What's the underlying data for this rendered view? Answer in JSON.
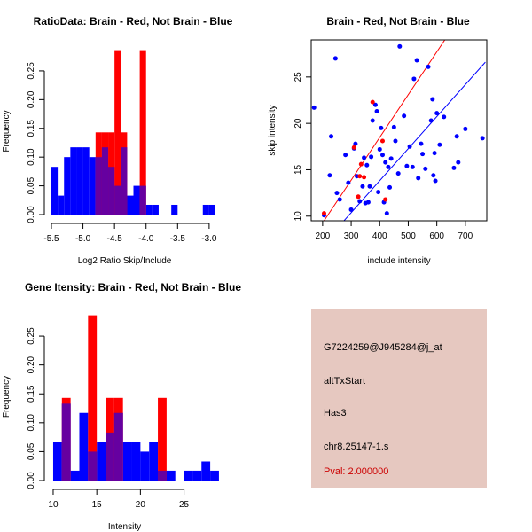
{
  "colors": {
    "red": "#ff0000",
    "blue": "#0000ff",
    "purple": "#6600a0",
    "info_bg": "#e6c8c0",
    "pval": "#cc0000"
  },
  "chart_data": [
    {
      "id": "ratio",
      "type": "histogram",
      "title": "RatioData: Brain - Red, Not Brain - Blue",
      "xlabel": "Log2 Ratio Skip/Include",
      "ylabel": "Frequency",
      "xlim": [
        -5.5,
        -2.9
      ],
      "ylim": [
        0,
        0.29
      ],
      "xticks": [
        -5.5,
        -5.0,
        -4.5,
        -4.0,
        -3.5,
        -3.0
      ],
      "xtick_labels": [
        "-5.5",
        "-5.0",
        "-4.5",
        "-4.0",
        "-3.5",
        "-3.0"
      ],
      "yticks": [
        0,
        0.05,
        0.1,
        0.15,
        0.2,
        0.25
      ],
      "ytick_labels": [
        "0.00",
        "0.05",
        "0.10",
        "0.15",
        "0.20",
        "0.25"
      ],
      "bin_width": 0.1,
      "series": [
        {
          "name": "Not Brain",
          "color": "blue",
          "bins": [
            [
              -5.5,
              0.083
            ],
            [
              -5.4,
              0.033
            ],
            [
              -5.3,
              0.1
            ],
            [
              -5.2,
              0.117
            ],
            [
              -5.1,
              0.117
            ],
            [
              -5.0,
              0.117
            ],
            [
              -4.9,
              0.1
            ],
            [
              -4.8,
              0.1
            ],
            [
              -4.7,
              0.117
            ],
            [
              -4.6,
              0.083
            ],
            [
              -4.5,
              0.05
            ],
            [
              -4.4,
              0.117
            ],
            [
              -4.3,
              0.033
            ],
            [
              -4.2,
              0.05
            ],
            [
              -4.1,
              0.05
            ],
            [
              -4.0,
              0.017
            ],
            [
              -3.9,
              0.017
            ],
            [
              -3.6,
              0.017
            ],
            [
              -3.1,
              0.017
            ],
            [
              -3.0,
              0.017
            ]
          ]
        },
        {
          "name": "Brain",
          "color": "red",
          "bins": [
            [
              -4.8,
              0.143
            ],
            [
              -4.7,
              0.143
            ],
            [
              -4.6,
              0.143
            ],
            [
              -4.5,
              0.286
            ],
            [
              -4.4,
              0.143
            ],
            [
              -4.1,
              0.286
            ]
          ]
        }
      ]
    },
    {
      "id": "scatter",
      "type": "scatter",
      "title": "Brain - Red, Not Brain - Blue",
      "xlabel": "include intensity",
      "ylabel": "skip intensity",
      "xlim": [
        160,
        775
      ],
      "ylim": [
        9.5,
        29
      ],
      "xticks": [
        200,
        300,
        400,
        500,
        600,
        700
      ],
      "xtick_labels": [
        "200",
        "300",
        "400",
        "500",
        "600",
        "700"
      ],
      "yticks": [
        10,
        15,
        20,
        25
      ],
      "ytick_labels": [
        "10",
        "15",
        "20",
        "25"
      ],
      "lines": [
        {
          "name": "Brain fit",
          "color": "red",
          "from": [
            205,
            9.5
          ],
          "to": [
            628,
            29
          ]
        },
        {
          "name": "Not Brain fit",
          "color": "blue",
          "from": [
            240,
            8.3
          ],
          "to": [
            770,
            26.6
          ]
        }
      ],
      "series": [
        {
          "name": "Not Brain",
          "color": "blue",
          "points": [
            [
              170,
              21.7
            ],
            [
              205,
              10.1
            ],
            [
              225,
              14.4
            ],
            [
              230,
              18.6
            ],
            [
              245,
              27
            ],
            [
              250,
              12.5
            ],
            [
              260,
              11.8
            ],
            [
              280,
              16.6
            ],
            [
              290,
              13.6
            ],
            [
              300,
              10.7
            ],
            [
              310,
              17.3
            ],
            [
              315,
              17.8
            ],
            [
              320,
              14.3
            ],
            [
              330,
              11.6
            ],
            [
              340,
              13.2
            ],
            [
              345,
              16.3
            ],
            [
              350,
              11.4
            ],
            [
              355,
              15.5
            ],
            [
              360,
              11.5
            ],
            [
              365,
              13.2
            ],
            [
              370,
              16.4
            ],
            [
              375,
              20.3
            ],
            [
              385,
              22
            ],
            [
              390,
              21.3
            ],
            [
              395,
              12.6
            ],
            [
              400,
              17.2
            ],
            [
              405,
              19.5
            ],
            [
              410,
              16.6
            ],
            [
              415,
              11.5
            ],
            [
              420,
              15.8
            ],
            [
              425,
              10.3
            ],
            [
              430,
              15.3
            ],
            [
              435,
              13.1
            ],
            [
              440,
              16.2
            ],
            [
              450,
              19.6
            ],
            [
              455,
              18.1
            ],
            [
              465,
              14.6
            ],
            [
              470,
              28.3
            ],
            [
              485,
              20.8
            ],
            [
              495,
              15.4
            ],
            [
              505,
              17.5
            ],
            [
              515,
              15.3
            ],
            [
              520,
              24.8
            ],
            [
              530,
              26.8
            ],
            [
              535,
              14.1
            ],
            [
              545,
              17.8
            ],
            [
              550,
              16.7
            ],
            [
              560,
              15.1
            ],
            [
              570,
              26.1
            ],
            [
              580,
              20.3
            ],
            [
              585,
              22.6
            ],
            [
              588,
              14.4
            ],
            [
              592,
              16.8
            ],
            [
              595,
              13.8
            ],
            [
              600,
              21.1
            ],
            [
              610,
              17.7
            ],
            [
              625,
              20.7
            ],
            [
              660,
              15.2
            ],
            [
              670,
              18.6
            ],
            [
              675,
              15.8
            ],
            [
              700,
              19.4
            ],
            [
              760,
              18.4
            ]
          ]
        },
        {
          "name": "Brain",
          "color": "red",
          "points": [
            [
              205,
              10.3
            ],
            [
              310,
              17.4
            ],
            [
              325,
              12.1
            ],
            [
              330,
              14.3
            ],
            [
              335,
              15.6
            ],
            [
              345,
              14.2
            ],
            [
              375,
              22.3
            ],
            [
              410,
              18.1
            ],
            [
              420,
              11.8
            ]
          ]
        }
      ]
    },
    {
      "id": "gene",
      "type": "histogram",
      "title": "Gene Itensity: Brain - Red, Not Brain - Blue",
      "xlabel": "Intensity",
      "ylabel": "Frequency",
      "xlim": [
        9.8,
        28.6
      ],
      "ylim": [
        0,
        0.29
      ],
      "xticks": [
        10,
        15,
        20,
        25
      ],
      "xtick_labels": [
        "10",
        "15",
        "20",
        "25"
      ],
      "yticks": [
        0,
        0.05,
        0.1,
        0.15,
        0.2,
        0.25
      ],
      "ytick_labels": [
        "0.00",
        "0.05",
        "0.10",
        "0.15",
        "0.20",
        "0.25"
      ],
      "bin_width": 1,
      "series": [
        {
          "name": "Not Brain",
          "color": "blue",
          "bins": [
            [
              10,
              0.067
            ],
            [
              11,
              0.133
            ],
            [
              12,
              0.017
            ],
            [
              13,
              0.117
            ],
            [
              14,
              0.05
            ],
            [
              15,
              0.067
            ],
            [
              16,
              0.083
            ],
            [
              17,
              0.117
            ],
            [
              18,
              0.067
            ],
            [
              19,
              0.067
            ],
            [
              20,
              0.05
            ],
            [
              21,
              0.067
            ],
            [
              22,
              0.017
            ],
            [
              23,
              0.017
            ],
            [
              25,
              0.017
            ],
            [
              26,
              0.017
            ],
            [
              27,
              0.033
            ],
            [
              28,
              0.017
            ]
          ]
        },
        {
          "name": "Brain",
          "color": "red",
          "bins": [
            [
              11,
              0.143
            ],
            [
              14,
              0.286
            ],
            [
              16,
              0.143
            ],
            [
              17,
              0.143
            ],
            [
              22,
              0.143
            ]
          ]
        }
      ]
    }
  ],
  "info": {
    "probe_id": "G7224259@J945284@j_at",
    "event_type": "altTxStart",
    "gene": "Has3",
    "location": "chr8.25147-1.s",
    "pval": "Pval: 2.000000"
  }
}
